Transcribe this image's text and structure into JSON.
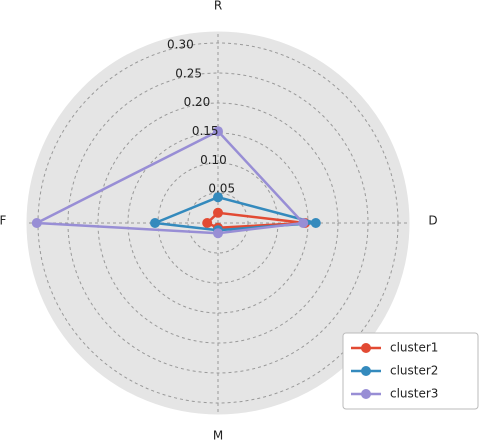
{
  "chart_data": {
    "type": "radar",
    "categories": [
      "R",
      "F",
      "M",
      "D"
    ],
    "series": [
      {
        "name": "cluster1",
        "color": "#e24a33",
        "values": [
          0.017,
          0.018,
          0.008,
          0.145
        ]
      },
      {
        "name": "cluster2",
        "color": "#348abd",
        "values": [
          0.043,
          0.105,
          0.012,
          0.163
        ]
      },
      {
        "name": "cluster3",
        "color": "#988ed5",
        "values": [
          0.153,
          0.302,
          0.017,
          0.142
        ]
      }
    ],
    "ylim": [
      0,
      0.32
    ],
    "yticks": [
      0.05,
      {
        "value": 0.1,
        "label": "0.10"
      },
      0.15,
      {
        "value": 0.2,
        "label": "0.20"
      },
      0.25,
      {
        "value": 0.3,
        "label": "0.30"
      }
    ],
    "grid": true,
    "legend": "lower right"
  }
}
